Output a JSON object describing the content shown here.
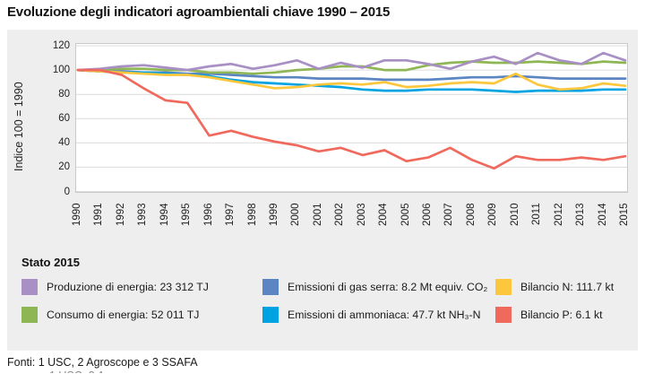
{
  "title": "Evoluzione degli indicatori agroambientali chiave 1990 – 2015",
  "footer": {
    "sources": "Fonti: 1 USC, 2 Agroscope e 3 SSAFA"
  },
  "legend": {
    "title": "Stato 2015",
    "columns": [
      [
        {
          "swatch_color": "#a88fc4",
          "label": "Produzione di energia: 23 312 TJ"
        },
        {
          "swatch_color": "#8fb654",
          "label": "Consumo di energia: 52 011 TJ"
        }
      ],
      [
        {
          "swatch_color": "#5b86c3",
          "label": "Emissioni di gas serra: 8.2 Mt equiv. CO₂"
        },
        {
          "swatch_color": "#00a3e2",
          "label": "Emissioni di ammoniaca: 47.7 kt NH₃-N"
        }
      ],
      [
        {
          "swatch_color": "#fcc63d",
          "label": "Bilancio N: 111.7 kt"
        },
        {
          "swatch_color": "#ef6a5d",
          "label": "Bilancio P: 6.1 kt"
        }
      ]
    ]
  },
  "chart_data": {
    "type": "line",
    "title": "Evoluzione degli indicatori agroambientali chiave 1990 – 2015",
    "xlabel": "",
    "ylabel": "Indice 100 = 1990",
    "ylim": [
      0,
      120
    ],
    "yticks": [
      0,
      20,
      40,
      60,
      80,
      100,
      120
    ],
    "grid": true,
    "legend_position": "bottom",
    "x": [
      "1990",
      "1991",
      "1992",
      "1993",
      "1994",
      "1995",
      "1996",
      "1997",
      "1998",
      "1999",
      "2000",
      "2001",
      "2002",
      "2003",
      "2004",
      "2005",
      "2006",
      "2007",
      "2008",
      "2009",
      "2010",
      "2011",
      "2012",
      "2013",
      "2014",
      "2015"
    ],
    "series": [
      {
        "name": "Produzione di energia",
        "state_2015": "23 312 TJ",
        "color": "#a88fc4",
        "values": [
          100,
          101,
          103,
          104,
          102,
          100,
          103,
          105,
          101,
          104,
          108,
          101,
          106,
          102,
          108,
          108,
          105,
          101,
          107,
          111,
          105,
          114,
          108,
          105,
          114,
          108
        ]
      },
      {
        "name": "Consumo di energia",
        "state_2015": "52 011 TJ",
        "color": "#8fb654",
        "values": [
          100,
          100,
          101,
          101,
          100,
          100,
          98,
          98,
          97,
          98,
          100,
          101,
          103,
          103,
          100,
          100,
          104,
          106,
          107,
          106,
          106,
          107,
          106,
          105,
          107,
          106
        ]
      },
      {
        "name": "Emissioni di gas serra",
        "state_2015": "8.2 Mt equiv. CO₂",
        "color": "#5b86c3",
        "values": [
          100,
          99,
          99,
          98,
          98,
          97,
          97,
          96,
          95,
          94,
          94,
          93,
          93,
          93,
          92,
          92,
          92,
          93,
          94,
          94,
          95,
          94,
          93,
          93,
          93,
          93
        ]
      },
      {
        "name": "Emissioni di ammoniaca",
        "state_2015": "47.7 kt NH₃-N",
        "color": "#00a3e2",
        "values": [
          100,
          99,
          98,
          98,
          97,
          96,
          95,
          92,
          90,
          89,
          88,
          87,
          86,
          84,
          83,
          83,
          84,
          84,
          84,
          83,
          82,
          83,
          83,
          83,
          84,
          84
        ]
      },
      {
        "name": "Bilancio N",
        "state_2015": "111.7 kt",
        "color": "#fcc63d",
        "values": [
          100,
          99,
          98,
          97,
          96,
          96,
          94,
          91,
          88,
          85,
          86,
          88,
          89,
          88,
          90,
          86,
          87,
          89,
          90,
          89,
          97,
          88,
          84,
          85,
          89,
          87
        ]
      },
      {
        "name": "Bilancio P",
        "state_2015": "6.1 kt",
        "color": "#ef6a5d",
        "values": [
          100,
          100,
          96,
          85,
          75,
          73,
          46,
          50,
          45,
          41,
          38,
          33,
          36,
          30,
          34,
          25,
          28,
          36,
          26,
          19,
          29,
          26,
          26,
          28,
          26,
          29
        ]
      }
    ]
  }
}
